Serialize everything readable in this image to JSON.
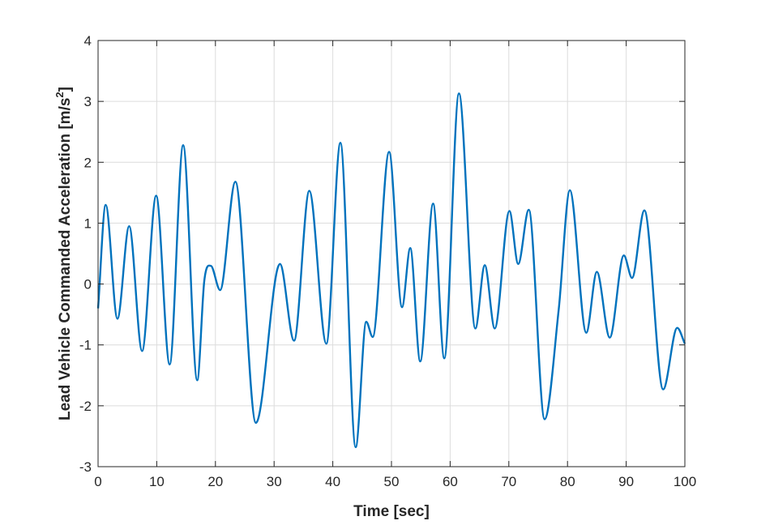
{
  "chart_data": {
    "type": "line",
    "title": "",
    "xlabel": "Time [sec]",
    "ylabel": "Lead Vehicle Commanded Acceleration [m/s",
    "ylabel_superscript": "2",
    "ylabel_suffix": "]",
    "xlim": [
      0,
      100
    ],
    "ylim": [
      -3,
      4
    ],
    "xticks": [
      0,
      10,
      20,
      30,
      40,
      50,
      60,
      70,
      80,
      90,
      100
    ],
    "yticks": [
      -3,
      -2,
      -1,
      0,
      1,
      2,
      3,
      4
    ],
    "grid": true,
    "legend": "none",
    "series": [
      {
        "color": "#0072BD",
        "x": [
          0,
          1.3,
          3.3,
          5.3,
          7.5,
          9.9,
          12.2,
          14.5,
          16.9,
          18.1,
          19.2,
          20.8,
          23.4,
          26.9,
          31.0,
          33.4,
          36.0,
          38.9,
          41.3,
          43.9,
          45.7,
          46.8,
          49.6,
          51.8,
          53.2,
          54.9,
          57.1,
          59.0,
          61.5,
          64.3,
          65.9,
          67.6,
          70.1,
          71.6,
          73.4,
          76.1,
          78.5,
          80.4,
          83.2,
          85.0,
          87.2,
          89.6,
          91.0,
          93.1,
          96.3,
          98.7,
          100
        ],
        "y": [
          -0.4,
          1.3,
          -0.57,
          0.95,
          -1.1,
          1.45,
          -1.32,
          2.28,
          -1.58,
          0.05,
          0.3,
          -0.1,
          1.68,
          -2.28,
          0.33,
          -0.93,
          1.53,
          -0.98,
          2.32,
          -2.68,
          -0.62,
          -0.87,
          2.17,
          -0.38,
          0.59,
          -1.27,
          1.32,
          -1.22,
          3.13,
          -0.73,
          0.31,
          -0.73,
          1.2,
          0.33,
          1.22,
          -2.22,
          -0.42,
          1.54,
          -0.8,
          0.2,
          -0.88,
          0.47,
          0.1,
          1.21,
          -1.73,
          -0.72,
          -0.98
        ]
      }
    ]
  }
}
